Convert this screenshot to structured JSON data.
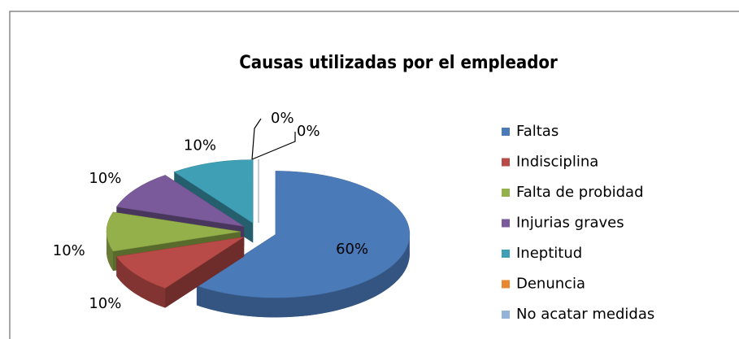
{
  "chart_data": {
    "type": "pie",
    "title": "Causas utilizadas por el empleador",
    "categories": [
      "Faltas",
      "Indisciplina",
      "Falta de probidad",
      "Injurias graves",
      "Ineptitud",
      "Denuncia",
      "No acatar medidas"
    ],
    "values": [
      60,
      10,
      10,
      10,
      10,
      0,
      0
    ],
    "value_labels": [
      "60%",
      "10%",
      "10%",
      "10%",
      "10%",
      "0%",
      "0%"
    ],
    "colors": [
      "#4a7ab8",
      "#b84a47",
      "#93b04a",
      "#7a5a9a",
      "#3e9fb5",
      "#e8892f",
      "#94b3d9"
    ],
    "legend": "right"
  }
}
